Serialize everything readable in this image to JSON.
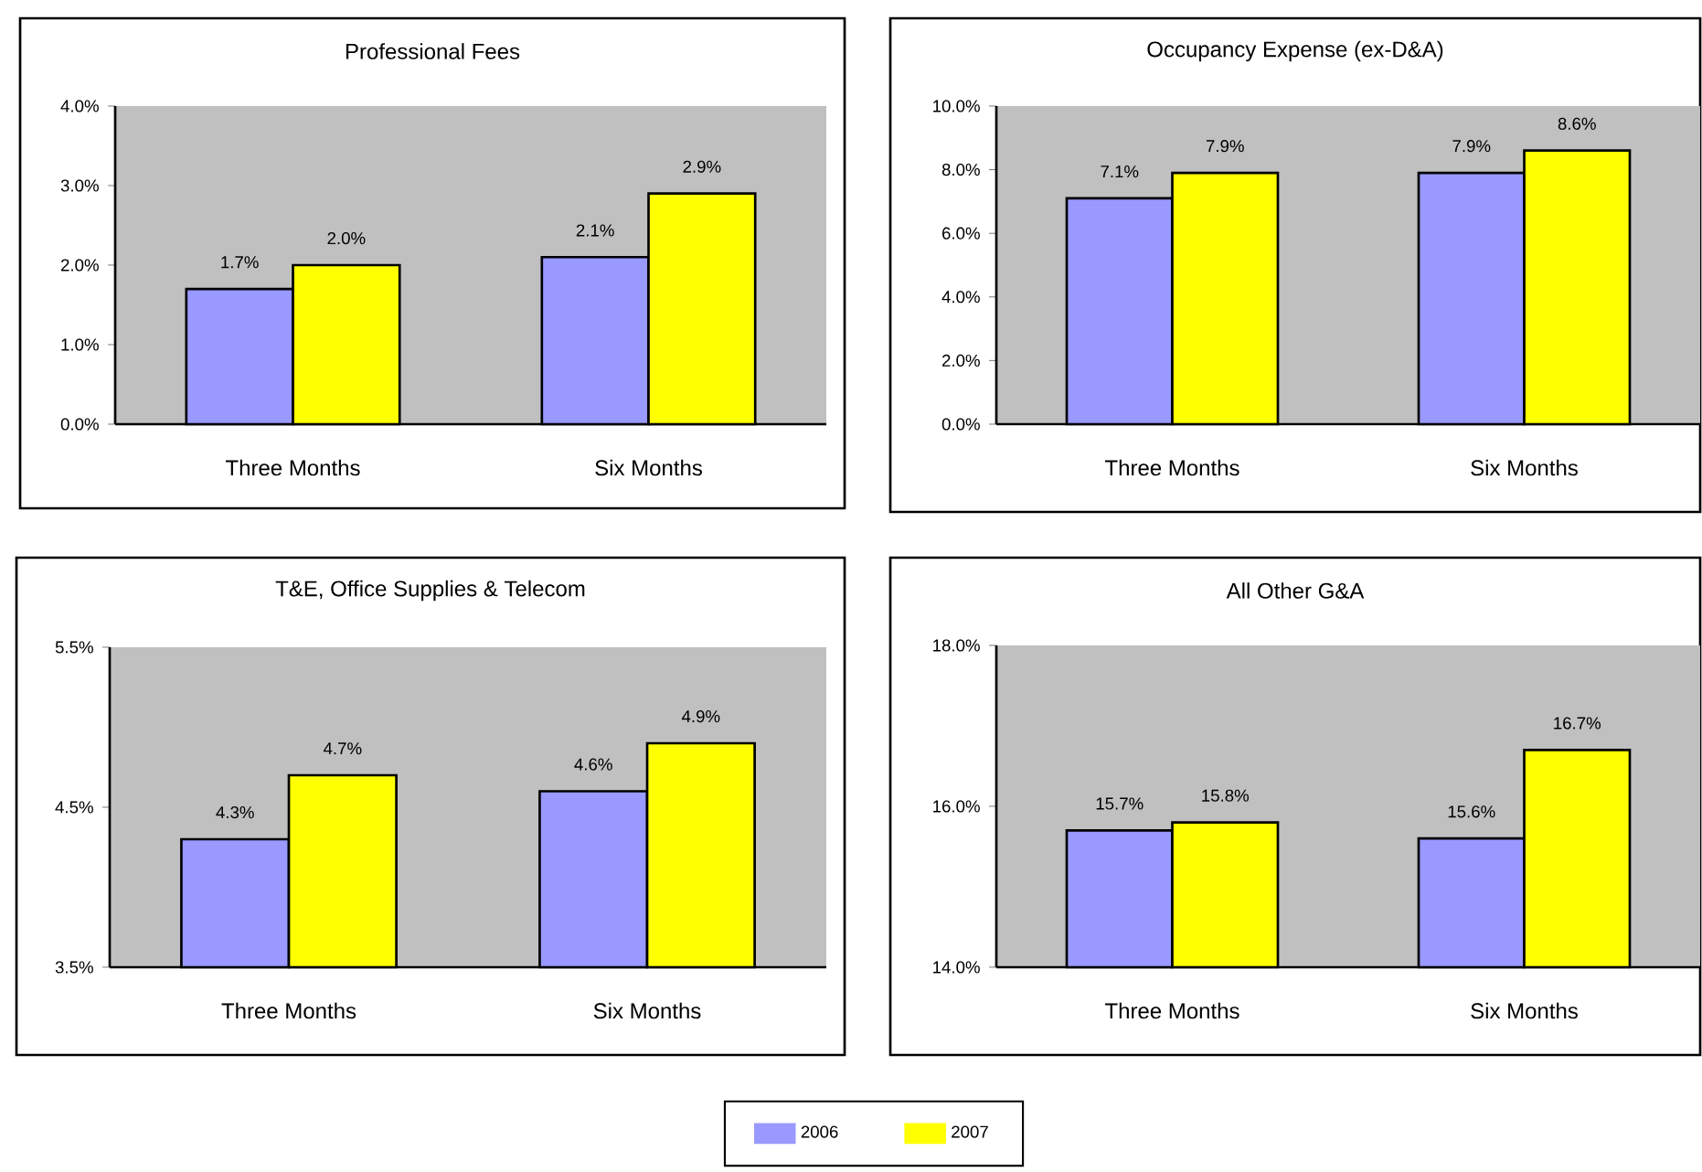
{
  "chart_data": [
    {
      "type": "bar",
      "title": "Professional Fees",
      "categories": [
        "Three Months",
        "Six Months"
      ],
      "series": [
        {
          "color": "#9999ff",
          "values": [
            1.7,
            2.1
          ],
          "value_labels": [
            "1.7%",
            "2.1%"
          ]
        },
        {
          "color": "#ffff00",
          "values": [
            2.0,
            2.9
          ],
          "value_labels": [
            "2.0%",
            "2.9%"
          ]
        }
      ],
      "ylim": [
        0,
        4
      ],
      "yticks": [
        {
          "value": 0,
          "label": "0.0%"
        },
        {
          "value": 1,
          "label": "1.0%"
        },
        {
          "value": 2,
          "label": "2.0%"
        },
        {
          "value": 3,
          "label": "3.0%"
        },
        {
          "value": 4,
          "label": "4.0%"
        }
      ]
    },
    {
      "type": "bar",
      "title": "Occupancy Expense (ex-D&A)",
      "categories": [
        "Three Months",
        "Six Months"
      ],
      "series": [
        {
          "color": "#9999ff",
          "values": [
            7.1,
            7.9
          ],
          "value_labels": [
            "7.1%",
            "7.9%"
          ]
        },
        {
          "color": "#ffff00",
          "values": [
            7.9,
            8.6
          ],
          "value_labels": [
            "7.9%",
            "8.6%"
          ]
        }
      ],
      "ylim": [
        0,
        10
      ],
      "yticks": [
        {
          "value": 0,
          "label": "0.0%"
        },
        {
          "value": 2,
          "label": "2.0%"
        },
        {
          "value": 4,
          "label": "4.0%"
        },
        {
          "value": 6,
          "label": "6.0%"
        },
        {
          "value": 8,
          "label": "8.0%"
        },
        {
          "value": 10,
          "label": "10.0%"
        }
      ]
    },
    {
      "type": "bar",
      "title": "T&E, Office Supplies & Telecom",
      "categories": [
        "Three Months",
        "Six Months"
      ],
      "series": [
        {
          "color": "#9999ff",
          "values": [
            4.3,
            4.6
          ],
          "value_labels": [
            "4.3%",
            "4.6%"
          ]
        },
        {
          "color": "#ffff00",
          "values": [
            4.7,
            4.9
          ],
          "value_labels": [
            "4.7%",
            "4.9%"
          ]
        }
      ],
      "ylim": [
        3.5,
        5.5
      ],
      "yticks": [
        {
          "value": 3.5,
          "label": "3.5%"
        },
        {
          "value": 4.5,
          "label": "4.5%"
        },
        {
          "value": 5.5,
          "label": "5.5%"
        }
      ]
    },
    {
      "type": "bar",
      "title": "All Other G&A",
      "categories": [
        "Three Months",
        "Six Months"
      ],
      "series": [
        {
          "name": "2006",
          "color": "#9999ff",
          "values": [
            15.7,
            15.6
          ],
          "value_labels": [
            "15.7%",
            "15.6%"
          ]
        },
        {
          "name": "2007",
          "color": "#ffff00",
          "values": [
            15.8,
            16.7
          ],
          "value_labels": [
            "15.8%",
            "16.7%"
          ]
        }
      ],
      "ylim": [
        14,
        18
      ],
      "yticks": [
        {
          "value": 14,
          "label": "14.0%"
        },
        {
          "value": 16,
          "label": "16.0%"
        },
        {
          "value": 18,
          "label": "18.0%"
        }
      ],
      "legend": "bottom"
    }
  ]
}
